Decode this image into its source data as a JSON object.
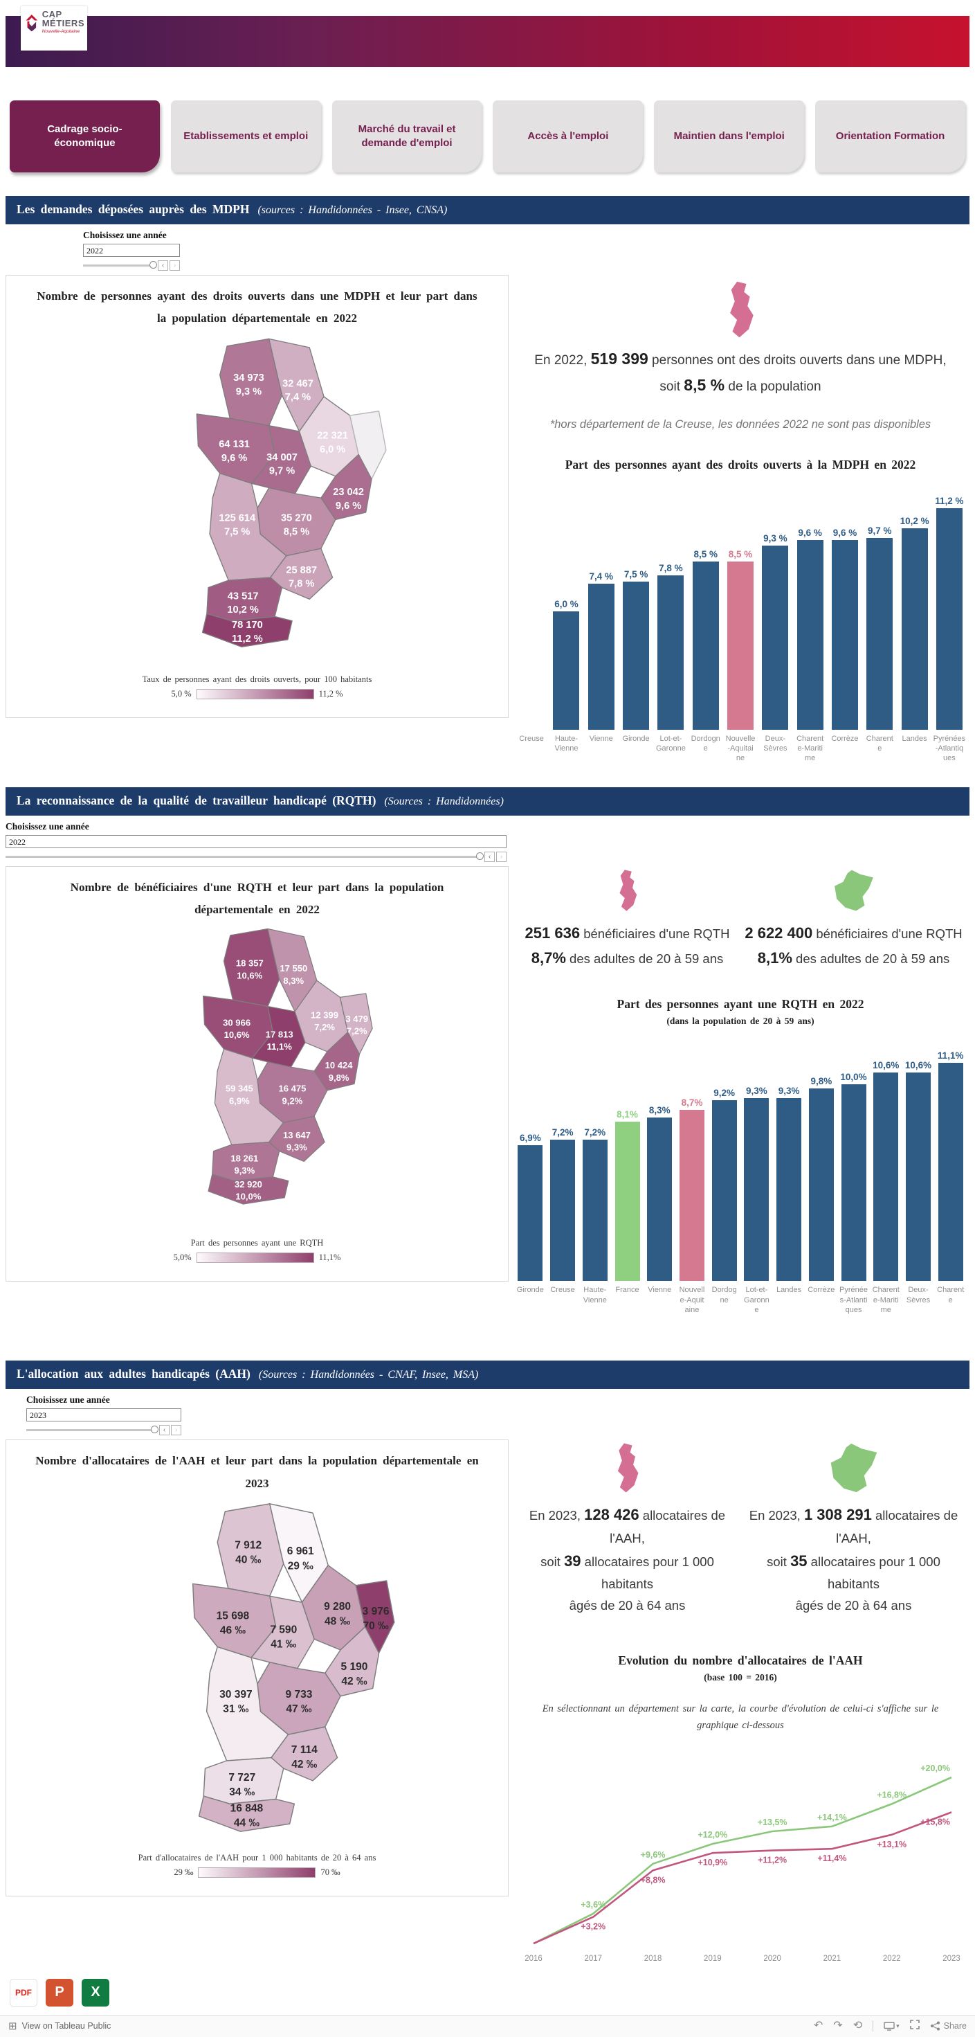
{
  "brand": {
    "line1": "CAP",
    "line2": "MÉTIERS",
    "tagline": "Nouvelle-Aquitaine"
  },
  "tabs": [
    {
      "label": "Cadrage socio-économique",
      "active": true
    },
    {
      "label": "Etablissements et emploi",
      "active": false
    },
    {
      "label": "Marché du travail et demande d'emploi",
      "active": false
    },
    {
      "label": "Accès à l'emploi",
      "active": false
    },
    {
      "label": "Maintien dans l'emploi",
      "active": false
    },
    {
      "label": "Orientation Formation",
      "active": false
    }
  ],
  "colors": {
    "banner_from": "#3c1b50",
    "banner_to": "#c6122e",
    "tab_active": "#75204f",
    "section_bar": "#1e3c6a",
    "bar_blue": "#2e5c85",
    "bar_pink": "#d4798f",
    "bar_green": "#8ed080",
    "line_green": "#8bc77a",
    "line_pink": "#c0567e",
    "map_min": "#faf5f8",
    "map_max": "#8f3f6c",
    "map_nodata": "#f1eff1"
  },
  "sections": [
    {
      "title": "Les demandes déposées auprès des MDPH",
      "source": "(sources : Handidonnées - Insee, CNSA)",
      "year_label": "Choisissez une année",
      "year": "2022",
      "map": {
        "title": "Nombre de personnes ayant des droits ouverts dans une MDPH et leur part dans la population départementale en 2022",
        "legend_title": "Taux de personnes ayant des droits ouverts, pour 100 habitants",
        "legend_min": "5,0 %",
        "legend_max": "11,2 %",
        "scale_min": 5.0,
        "scale_max": 11.2,
        "label_color": "#ffffff",
        "departments": [
          {
            "id": "deux-sevres",
            "name": "Deux-Sèvres",
            "value": "34 973",
            "pct": "9,3 %",
            "v": 9.3
          },
          {
            "id": "vienne",
            "name": "Vienne",
            "value": "32 467",
            "pct": "7,4 %",
            "v": 7.4
          },
          {
            "id": "charente-maritime",
            "name": "Charente-Maritime",
            "value": "64 131",
            "pct": "9,6 %",
            "v": 9.6
          },
          {
            "id": "charente",
            "name": "Charente",
            "value": "34 007",
            "pct": "9,7 %",
            "v": 9.7
          },
          {
            "id": "haute-vienne",
            "name": "Haute-Vienne",
            "value": "22 321",
            "pct": "6,0 %",
            "v": 6.0
          },
          {
            "id": "creuse",
            "name": "Creuse",
            "value": "",
            "pct": "",
            "v": null
          },
          {
            "id": "correze",
            "name": "Corrèze",
            "value": "23 042",
            "pct": "9,6 %",
            "v": 9.6
          },
          {
            "id": "dordogne",
            "name": "Dordogne",
            "value": "35 270",
            "pct": "8,5 %",
            "v": 8.5
          },
          {
            "id": "gironde",
            "name": "Gironde",
            "value": "125 614",
            "pct": "7,5 %",
            "v": 7.5
          },
          {
            "id": "lot-et-garonne",
            "name": "Lot-et-Garonne",
            "value": "25 887",
            "pct": "7,8 %",
            "v": 7.8
          },
          {
            "id": "landes",
            "name": "Landes",
            "value": "43 517",
            "pct": "10,2 %",
            "v": 10.2
          },
          {
            "id": "pyrenees-atlantiques",
            "name": "Pyrénées-Atlantiques",
            "value": "78 170",
            "pct": "11,2 %",
            "v": 11.2
          }
        ]
      },
      "stats": [
        {
          "icon": "nouvelle-aquitaine",
          "lines": [
            [
              {
                "t": "En 2022, "
              },
              {
                "t": "519 399",
                "b": 1
              },
              {
                "t": " personnes ont des droits ouverts dans une MDPH,"
              }
            ],
            [
              {
                "t": "soit "
              },
              {
                "t": "8,5 %",
                "b": 1
              },
              {
                "t": " de la population"
              }
            ]
          ]
        }
      ],
      "note": "*hors département de la Creuse, les données 2022 ne sont pas disponibles",
      "chart": {
        "type": "bar",
        "title": "Part des personnes ayant des droits ouverts à la MDPH en 2022",
        "subtitle": "",
        "ymax": 11.2,
        "categories": [
          {
            "label": "Creuse",
            "value": null,
            "display": ""
          },
          {
            "label": "Haute-\nVienne",
            "value": 6.0,
            "display": "6,0 %"
          },
          {
            "label": "Vienne",
            "value": 7.4,
            "display": "7,4 %"
          },
          {
            "label": "Gironde",
            "value": 7.5,
            "display": "7,5 %"
          },
          {
            "label": "Lot-et-\nGaronne",
            "value": 7.8,
            "display": "7,8 %"
          },
          {
            "label": "Dordogn\ne",
            "value": 8.5,
            "display": "8,5 %"
          },
          {
            "label": "Nouvelle\n-Aquitai\nne",
            "value": 8.5,
            "display": "8,5 %",
            "color": "pink"
          },
          {
            "label": "Deux-\nSèvres",
            "value": 9.3,
            "display": "9,3 %"
          },
          {
            "label": "Charent\ne-Mariti\nme",
            "value": 9.6,
            "display": "9,6 %"
          },
          {
            "label": "Corrèze",
            "value": 9.6,
            "display": "9,6 %"
          },
          {
            "label": "Charent\ne",
            "value": 9.7,
            "display": "9,7 %"
          },
          {
            "label": "Landes",
            "value": 10.2,
            "display": "10,2 %"
          },
          {
            "label": "Pyrénées\n-Atlantiq\nues",
            "value": 11.2,
            "display": "11,2 %"
          }
        ]
      }
    },
    {
      "title": "La reconnaissance de la qualité de travailleur handicapé (RQTH)",
      "source": "(Sources : Handidonnées)",
      "year_label": "Choisissez une année",
      "year": "2022",
      "map": {
        "title": "Nombre de bénéficiaires d'une RQTH et leur part dans la population départementale en 2022",
        "legend_title": "Part des personnes ayant une RQTH",
        "legend_min": "5,0%",
        "legend_max": "11,1%",
        "scale_min": 5.0,
        "scale_max": 11.1,
        "label_color": "#ffffff",
        "departments": [
          {
            "id": "deux-sevres",
            "name": "Deux-Sèvres",
            "value": "18 357",
            "pct": "10,6%",
            "v": 10.6
          },
          {
            "id": "vienne",
            "name": "Vienne",
            "value": "17 550",
            "pct": "8,3%",
            "v": 8.3
          },
          {
            "id": "charente-maritime",
            "name": "Charente-Maritime",
            "value": "30 966",
            "pct": "10,6%",
            "v": 10.6
          },
          {
            "id": "charente",
            "name": "Charente",
            "value": "17 813",
            "pct": "11,1%",
            "v": 11.1
          },
          {
            "id": "haute-vienne",
            "name": "Haute-Vienne",
            "value": "12 399",
            "pct": "7,2%",
            "v": 7.2
          },
          {
            "id": "creuse",
            "name": "Creuse",
            "value": "3 479",
            "pct": "7,2%",
            "v": 7.2
          },
          {
            "id": "correze",
            "name": "Corrèze",
            "value": "10 424",
            "pct": "9,8%",
            "v": 9.8
          },
          {
            "id": "dordogne",
            "name": "Dordogne",
            "value": "16 475",
            "pct": "9,2%",
            "v": 9.2
          },
          {
            "id": "gironde",
            "name": "Gironde",
            "value": "59 345",
            "pct": "6,9%",
            "v": 6.9
          },
          {
            "id": "lot-et-garonne",
            "name": "Lot-et-Garonne",
            "value": "13 647",
            "pct": "9,3%",
            "v": 9.3
          },
          {
            "id": "landes",
            "name": "Landes",
            "value": "18 261",
            "pct": "9,3%",
            "v": 9.3
          },
          {
            "id": "pyrenees-atlantiques",
            "name": "Pyrénées-Atlantiques",
            "value": "32 920",
            "pct": "10,0%",
            "v": 10.0
          }
        ]
      },
      "stats": [
        {
          "icon": "nouvelle-aquitaine",
          "lines": [
            [
              {
                "t": "251 636",
                "b": 1
              },
              {
                "t": " bénéficiaires d'une RQTH"
              }
            ],
            [
              {
                "t": "8,7%",
                "b": 1
              },
              {
                "t": " des adultes de 20 à 59 ans"
              }
            ]
          ]
        },
        {
          "icon": "france",
          "lines": [
            [
              {
                "t": "2 622 400",
                "b": 1
              },
              {
                "t": " bénéficiaires d'une RQTH"
              }
            ],
            [
              {
                "t": "8,1%",
                "b": 1
              },
              {
                "t": " des adultes de 20 à 59 ans"
              }
            ]
          ]
        }
      ],
      "note": "",
      "chart": {
        "type": "bar",
        "title": "Part des personnes ayant une RQTH en 2022",
        "subtitle": "(dans la population de 20 à 59 ans)",
        "ymax": 11.1,
        "categories": [
          {
            "label": "Gironde",
            "value": 6.9,
            "display": "6,9%"
          },
          {
            "label": "Creuse",
            "value": 7.2,
            "display": "7,2%"
          },
          {
            "label": "Haute-\nVienne",
            "value": 7.2,
            "display": "7,2%"
          },
          {
            "label": "France",
            "value": 8.1,
            "display": "8,1%",
            "color": "green"
          },
          {
            "label": "Vienne",
            "value": 8.3,
            "display": "8,3%"
          },
          {
            "label": "Nouvell\ne-Aquit\naine",
            "value": 8.7,
            "display": "8,7%",
            "color": "pink"
          },
          {
            "label": "Dordog\nne",
            "value": 9.2,
            "display": "9,2%"
          },
          {
            "label": "Lot-et-\nGaronn\ne",
            "value": 9.3,
            "display": "9,3%"
          },
          {
            "label": "Landes",
            "value": 9.3,
            "display": "9,3%"
          },
          {
            "label": "Corrèze",
            "value": 9.8,
            "display": "9,8%"
          },
          {
            "label": "Pyrénée\ns-Atlanti\nques",
            "value": 10.0,
            "display": "10,0%"
          },
          {
            "label": "Charent\ne-Mariti\nme",
            "value": 10.6,
            "display": "10,6%"
          },
          {
            "label": "Deux-\nSèvres",
            "value": 10.6,
            "display": "10,6%"
          },
          {
            "label": "Charent\ne",
            "value": 11.1,
            "display": "11,1%"
          }
        ]
      }
    },
    {
      "title": "L'allocation aux adultes handicapés (AAH)",
      "source": "(Sources : Handidonnées - CNAF, Insee, MSA)",
      "year_label": "Choisissez une année",
      "year": "2023",
      "map": {
        "title": "Nombre d'allocataires de l'AAH et leur part dans la population départementale en 2023",
        "legend_title": "Part d'allocataires de l'AAH pour 1 000 habitants de 20 à 64 ans",
        "legend_min": "29 ‰",
        "legend_max": "70 ‰",
        "scale_min": 29,
        "scale_max": 70,
        "label_color": "#2b2b2b",
        "departments": [
          {
            "id": "deux-sevres",
            "name": "Deux-Sèvres",
            "value": "7 912",
            "pct": "40 ‰",
            "v": 40
          },
          {
            "id": "vienne",
            "name": "Vienne",
            "value": "6 961",
            "pct": "29 ‰",
            "v": 29
          },
          {
            "id": "charente-maritime",
            "name": "Charente-Maritime",
            "value": "15 698",
            "pct": "46 ‰",
            "v": 46
          },
          {
            "id": "charente",
            "name": "Charente",
            "value": "7 590",
            "pct": "41 ‰",
            "v": 41
          },
          {
            "id": "haute-vienne",
            "name": "Haute-Vienne",
            "value": "9 280",
            "pct": "48 ‰",
            "v": 48
          },
          {
            "id": "creuse",
            "name": "Creuse",
            "value": "3 976",
            "pct": "70 ‰",
            "v": 70
          },
          {
            "id": "correze",
            "name": "Corrèze",
            "value": "5 190",
            "pct": "42 ‰",
            "v": 42
          },
          {
            "id": "dordogne",
            "name": "Dordogne",
            "value": "9 733",
            "pct": "47 ‰",
            "v": 47
          },
          {
            "id": "gironde",
            "name": "Gironde",
            "value": "30 397",
            "pct": "31 ‰",
            "v": 31
          },
          {
            "id": "lot-et-garonne",
            "name": "Lot-et-Garonne",
            "value": "7 114",
            "pct": "42 ‰",
            "v": 42
          },
          {
            "id": "landes",
            "name": "Landes",
            "value": "7 727",
            "pct": "34 ‰",
            "v": 34
          },
          {
            "id": "pyrenees-atlantiques",
            "name": "Pyrénées-Atlantiques",
            "value": "16 848",
            "pct": "44 ‰",
            "v": 44
          }
        ]
      },
      "stats": [
        {
          "icon": "nouvelle-aquitaine",
          "lines": [
            [
              {
                "t": "En 2023, "
              },
              {
                "t": "128 426",
                "b": 1
              },
              {
                "t": " allocataires de l'AAH,"
              }
            ],
            [
              {
                "t": "soit "
              },
              {
                "t": "39",
                "b": 1
              },
              {
                "t": " allocataires pour 1 000 habitants"
              }
            ],
            [
              {
                "t": "âgés de 20 à 64 ans"
              }
            ]
          ]
        },
        {
          "icon": "france",
          "lines": [
            [
              {
                "t": "En 2023, "
              },
              {
                "t": "1 308 291",
                "b": 1
              },
              {
                "t": " allocataires de l'AAH,"
              }
            ],
            [
              {
                "t": "soit "
              },
              {
                "t": "35",
                "b": 1
              },
              {
                "t": " allocataires pour 1 000 habitants"
              }
            ],
            [
              {
                "t": "âgés de 20 à 64 ans"
              }
            ]
          ]
        }
      ],
      "note": "",
      "chart": {
        "type": "line",
        "title": "Evolution du nombre d'allocataires de l'AAH",
        "subtitle": "(base 100 = 2016)",
        "note": "En sélectionnant un département sur la carte, la courbe d'évolution de celui-ci s'affiche sur le graphique ci-dessous",
        "x": [
          "2016",
          "2017",
          "2018",
          "2019",
          "2020",
          "2021",
          "2022",
          "2023"
        ],
        "series": [
          {
            "name": "France",
            "color": "#8bc77a",
            "values": [
              0,
              3.6,
              9.6,
              12.0,
              13.5,
              14.1,
              16.8,
              20.0
            ],
            "labels": [
              "",
              "+3,6%",
              "+9,6%",
              "+12,0%",
              "+13,5%",
              "+14,1%",
              "+16,8%",
              "+20,0%"
            ]
          },
          {
            "name": "Nouvelle-Aquitaine",
            "color": "#c0567e",
            "values": [
              0,
              3.2,
              8.8,
              10.9,
              11.2,
              11.4,
              13.1,
              15.8
            ],
            "labels": [
              "",
              "+3,2%",
              "+8,8%",
              "+10,9%",
              "+11,2%",
              "+11,4%",
              "+13,1%",
              "+15,8%"
            ]
          }
        ]
      }
    }
  ],
  "footer": {
    "exports": [
      {
        "type": "pdf",
        "label": "PDF"
      },
      {
        "type": "powerpoint",
        "label": "P"
      },
      {
        "type": "excel",
        "label": "X"
      }
    ],
    "view_on": "View on Tableau Public",
    "share": "Share"
  }
}
